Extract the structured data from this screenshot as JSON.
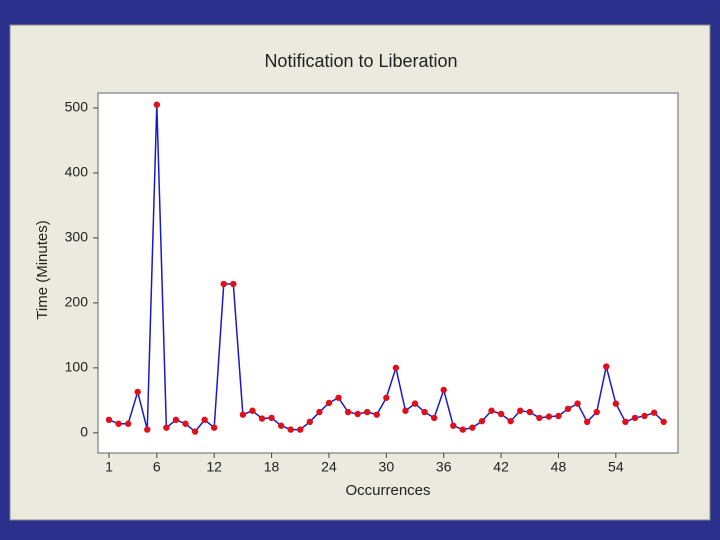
{
  "chart_data": {
    "type": "line",
    "title": "Notification to Liberation",
    "x_label": "Occurrences",
    "y_label": "Time (Minutes)",
    "x": [
      1,
      2,
      3,
      4,
      5,
      6,
      7,
      8,
      9,
      10,
      11,
      12,
      13,
      14,
      15,
      16,
      17,
      18,
      19,
      20,
      21,
      22,
      23,
      24,
      25,
      26,
      27,
      28,
      29,
      30,
      31,
      32,
      33,
      34,
      35,
      36,
      37,
      38,
      39,
      40,
      41,
      42,
      43,
      44,
      45,
      46,
      47,
      48,
      49,
      50,
      51,
      52,
      53,
      54,
      55,
      56,
      57,
      58,
      59
    ],
    "series": [
      {
        "name": "Time",
        "color": "#1a1ac8",
        "marker_color": "#e0101a",
        "values": [
          20,
          14,
          14,
          63,
          5,
          505,
          8,
          20,
          14,
          2,
          20,
          8,
          229,
          229,
          28,
          34,
          22,
          23,
          11,
          5,
          5,
          17,
          32,
          46,
          54,
          32,
          29,
          32,
          28,
          54,
          100,
          34,
          45,
          32,
          23,
          66,
          11,
          5,
          8,
          18,
          34,
          29,
          18,
          34,
          32,
          23,
          25,
          26,
          37,
          45,
          17,
          32,
          102,
          45,
          17,
          23,
          26,
          31,
          17
        ]
      }
    ],
    "xlim": [
      -0.15,
      60.5
    ],
    "xticks": [
      1,
      6,
      12,
      18,
      24,
      30,
      36,
      42,
      48,
      54
    ],
    "ylim": [
      -31,
      523
    ],
    "yticks": [
      0,
      100,
      200,
      300,
      400,
      500
    ]
  }
}
